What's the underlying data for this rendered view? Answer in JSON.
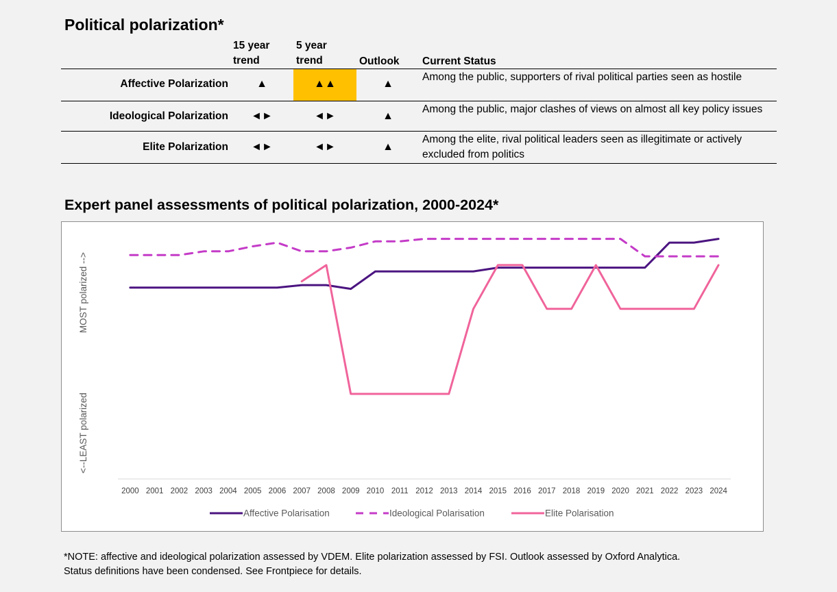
{
  "header": {
    "title": "Political polarization*"
  },
  "status_table": {
    "columns": {
      "trend15": "15 year trend",
      "trend5": "5 year trend",
      "outlook": "Outlook",
      "status": "Current Status"
    },
    "highlight_color": "#ffc000",
    "rows": [
      {
        "name": "Affective Polarization",
        "trend15": "▲",
        "trend5": "▲▲",
        "outlook": "▲",
        "status": "Among the public, supporters of rival political parties seen as hostile",
        "trend5_highlighted": true
      },
      {
        "name": "Ideological Polarization",
        "trend15": "◄►",
        "trend5": "◄►",
        "outlook": "▲",
        "status": "Among the public, major clashes of views on almost all key policy issues",
        "trend5_highlighted": false
      },
      {
        "name": "Elite Polarization",
        "trend15": "◄►",
        "trend5": "◄►",
        "outlook": "▲",
        "status": "Among the elite, rival political leaders seen as illegitimate or actively excluded from politics",
        "trend5_highlighted": false
      }
    ]
  },
  "chart_data": {
    "type": "line",
    "title": "Expert panel assessments of political polarization, 2000-2024*",
    "xlabel": "",
    "ylabel_top": "MOST polarized -->",
    "ylabel_bottom": "<--LEAST polarized",
    "ylim": [
      0,
      100
    ],
    "x": [
      "2000",
      "2001",
      "2002",
      "2003",
      "2004",
      "2005",
      "2006",
      "2007",
      "2008",
      "2009",
      "2010",
      "2011",
      "2012",
      "2013",
      "2014",
      "2015",
      "2016",
      "2017",
      "2018",
      "2019",
      "2020",
      "2021",
      "2022",
      "2023",
      "2024"
    ],
    "series": [
      {
        "name": "Affective Polarisation",
        "color": "#4b1480",
        "dash": "solid",
        "values": [
          76.5,
          76.5,
          76.5,
          76.5,
          76.5,
          76.5,
          76.5,
          77.5,
          77.5,
          76,
          83,
          83,
          83,
          83,
          83,
          84.5,
          84.5,
          84.5,
          84.5,
          84.5,
          84.5,
          84.5,
          94.5,
          94.5,
          96
        ]
      },
      {
        "name": "Ideological Polarisation",
        "color": "#c43bc7",
        "dash": "dashed",
        "values": [
          89.5,
          89.5,
          89.5,
          91,
          91,
          93,
          94.5,
          91,
          91,
          92.5,
          95,
          95,
          96,
          96,
          96,
          96,
          96,
          96,
          96,
          96,
          96,
          89,
          89,
          89,
          89
        ]
      },
      {
        "name": "Elite Polarisation",
        "color": "#f0649b",
        "dash": "solid",
        "values": [
          null,
          null,
          null,
          null,
          null,
          null,
          null,
          79,
          85.5,
          34,
          34,
          34,
          34,
          34,
          68,
          85.5,
          85.5,
          68,
          68,
          85.5,
          68,
          68,
          68,
          68,
          85.5
        ]
      }
    ],
    "legend": "bottom",
    "grid": false
  },
  "footnote": {
    "line1": "*NOTE: affective and ideological polarization assessed by VDEM. Elite polarization assessed by FSI. Outlook assessed by Oxford Analytica.",
    "line2": "Status definitions have been condensed. See Frontpiece for details."
  }
}
